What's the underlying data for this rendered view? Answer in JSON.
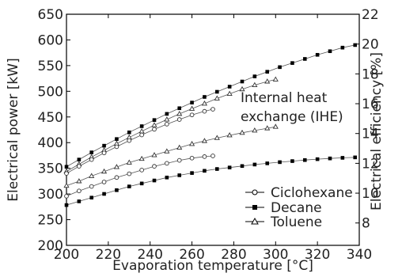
{
  "chart_data": {
    "type": "line",
    "xlabel": "Evaporation temperature [°C]",
    "ylabel": "Electrical power [kW]",
    "y2label": "Electrical efficiency [%]",
    "xlim": [
      200,
      340
    ],
    "ylim": [
      200,
      650
    ],
    "y2lim": [
      6.5,
      22
    ],
    "x_ticks": [
      "200",
      "220",
      "240",
      "260",
      "280",
      "300",
      "320",
      "340"
    ],
    "y_ticks": [
      "200",
      "250",
      "300",
      "350",
      "400",
      "450",
      "500",
      "550",
      "600",
      "650"
    ],
    "y2_ticks": [
      "8",
      "10",
      "12",
      "14",
      "16",
      "18",
      "20",
      "22"
    ],
    "annotation": [
      "Internal heat",
      "exchange (IHE)"
    ],
    "legend": [
      "Ciclohexane",
      "Decane",
      "Toluene"
    ],
    "legend_position": "bottom-right",
    "series": [
      {
        "name": "Decane",
        "group": "power",
        "marker": "square-filled",
        "axis": "left",
        "x": [
          200,
          206,
          212,
          218,
          224,
          230,
          236,
          242,
          248,
          254,
          260,
          266,
          272,
          278,
          284,
          290,
          296,
          302,
          308,
          314,
          320,
          326,
          332,
          338
        ],
        "y": [
          353,
          367,
          381,
          394,
          407,
          420,
          432,
          444,
          456,
          467,
          478,
          489,
          499,
          509,
          519,
          529,
          538,
          547,
          555,
          563,
          571,
          578,
          585,
          590
        ]
      },
      {
        "name": "Toluene",
        "group": "power",
        "marker": "triangle-open",
        "axis": "left",
        "x": [
          200,
          206,
          212,
          218,
          224,
          230,
          236,
          242,
          248,
          254,
          260,
          266,
          272,
          278,
          284,
          290,
          296,
          300
        ],
        "y": [
          344,
          358,
          372,
          385,
          398,
          410,
          422,
          434,
          445,
          456,
          466,
          476,
          486,
          495,
          504,
          512,
          519,
          523
        ]
      },
      {
        "name": "Ciclohexane",
        "group": "power",
        "marker": "circle-open",
        "axis": "left",
        "x": [
          200,
          206,
          212,
          218,
          224,
          230,
          236,
          242,
          248,
          254,
          260,
          266,
          270
        ],
        "y": [
          340,
          354,
          367,
          380,
          392,
          404,
          415,
          426,
          436,
          445,
          454,
          461,
          465
        ]
      },
      {
        "name": "Toluene",
        "group": "efficiency",
        "marker": "triangle-open",
        "axis": "right",
        "x": [
          200,
          206,
          212,
          218,
          224,
          230,
          236,
          242,
          248,
          254,
          260,
          266,
          272,
          278,
          284,
          290,
          296,
          300
        ],
        "y": [
          10.5,
          10.8,
          11.15,
          11.45,
          11.75,
          12.05,
          12.3,
          12.55,
          12.8,
          13.05,
          13.3,
          13.5,
          13.7,
          13.88,
          14.05,
          14.2,
          14.35,
          14.45
        ]
      },
      {
        "name": "Ciclohexane",
        "group": "efficiency",
        "marker": "circle-open",
        "axis": "right",
        "x": [
          200,
          206,
          212,
          218,
          224,
          230,
          236,
          242,
          248,
          254,
          260,
          266,
          270
        ],
        "y": [
          9.8,
          10.15,
          10.45,
          10.75,
          11.05,
          11.3,
          11.55,
          11.8,
          12.0,
          12.2,
          12.35,
          12.45,
          12.5
        ]
      },
      {
        "name": "Decane",
        "group": "efficiency",
        "marker": "square-filled",
        "axis": "right",
        "x": [
          200,
          206,
          212,
          218,
          224,
          230,
          236,
          242,
          248,
          254,
          260,
          266,
          272,
          278,
          284,
          290,
          296,
          302,
          308,
          314,
          320,
          326,
          332,
          338
        ],
        "y": [
          9.2,
          9.45,
          9.7,
          9.95,
          10.2,
          10.45,
          10.65,
          10.85,
          11.05,
          11.2,
          11.35,
          11.5,
          11.62,
          11.72,
          11.82,
          11.92,
          12.0,
          12.08,
          12.15,
          12.22,
          12.28,
          12.33,
          12.37,
          12.4
        ]
      }
    ]
  }
}
